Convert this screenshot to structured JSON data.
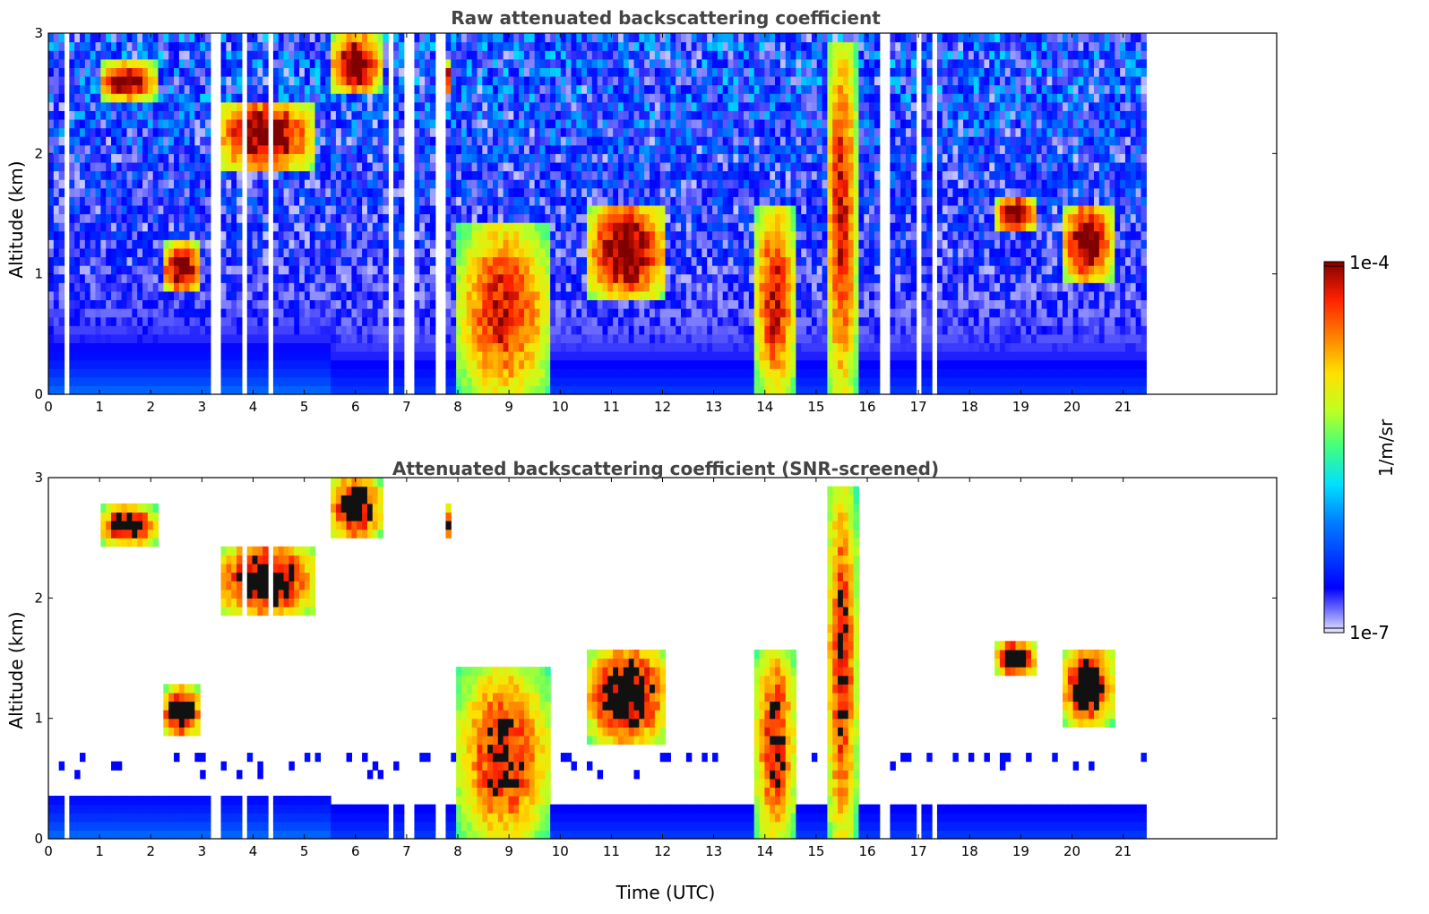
{
  "chart_data": [
    {
      "type": "heatmap",
      "title": "Raw attenuated backscattering coefficient",
      "xlabel": "",
      "ylabel": "Altitude (km)",
      "xlim": [
        0,
        24
      ],
      "ylim": [
        0,
        3
      ],
      "x_ticks": [
        "0",
        "1",
        "2",
        "3",
        "4",
        "5",
        "6",
        "7",
        "8",
        "9",
        "10",
        "11",
        "12",
        "13",
        "14",
        "15",
        "16",
        "17",
        "18",
        "19",
        "20",
        "21"
      ],
      "y_ticks": [
        "0",
        "1",
        "2",
        "3"
      ],
      "data_end_x": 21.45,
      "colorscale": "jet",
      "features": [
        {
          "kind": "cloud",
          "t": [
            1.0,
            2.1
          ],
          "alt": [
            2.45,
            2.75
          ]
        },
        {
          "kind": "cloud",
          "t": [
            3.3,
            5.2
          ],
          "alt": [
            1.85,
            2.45
          ]
        },
        {
          "kind": "cloud",
          "t": [
            2.2,
            3.0
          ],
          "alt": [
            0.85,
            1.25
          ]
        },
        {
          "kind": "cloud",
          "t": [
            5.5,
            6.5
          ],
          "alt": [
            2.5,
            3.0
          ]
        },
        {
          "kind": "cloud",
          "t": [
            7.6,
            7.9
          ],
          "alt": [
            2.5,
            2.75
          ]
        },
        {
          "kind": "precipitation",
          "t": [
            8.0,
            9.8
          ],
          "alt": [
            0.0,
            1.4
          ]
        },
        {
          "kind": "cloud",
          "t": [
            10.5,
            12.1
          ],
          "alt": [
            0.8,
            1.6
          ]
        },
        {
          "kind": "precipitation",
          "t": [
            13.8,
            14.6
          ],
          "alt": [
            0.0,
            1.6
          ]
        },
        {
          "kind": "precipitation",
          "t": [
            15.2,
            15.8
          ],
          "alt": [
            0.0,
            2.9
          ]
        },
        {
          "kind": "cloud",
          "t": [
            18.5,
            19.3
          ],
          "alt": [
            1.35,
            1.65
          ]
        },
        {
          "kind": "cloud",
          "t": [
            19.8,
            20.8
          ],
          "alt": [
            0.95,
            1.6
          ]
        }
      ],
      "gaps": [
        0.33,
        3.27,
        3.86,
        4.36,
        6.72,
        7.05,
        7.66,
        16.34,
        17.0,
        17.3
      ]
    },
    {
      "type": "heatmap",
      "title": "Attenuated backscattering coefficient (SNR-screened)",
      "xlabel": "Time (UTC)",
      "ylabel": "Altitude (km)",
      "xlim": [
        0,
        24
      ],
      "ylim": [
        0,
        3
      ],
      "x_ticks": [
        "0",
        "1",
        "2",
        "3",
        "4",
        "5",
        "6",
        "7",
        "8",
        "9",
        "10",
        "11",
        "12",
        "13",
        "14",
        "15",
        "16",
        "17",
        "18",
        "19",
        "20",
        "21"
      ],
      "y_ticks": [
        "0",
        "1",
        "2",
        "3"
      ],
      "data_end_x": 21.45,
      "colorscale": "jet",
      "screened": true
    }
  ],
  "colorbar": {
    "label": "1/m/sr",
    "max_label": "1e-4",
    "min_label": "1e-7",
    "scale": "log",
    "range": [
      1e-07,
      0.0001
    ]
  }
}
